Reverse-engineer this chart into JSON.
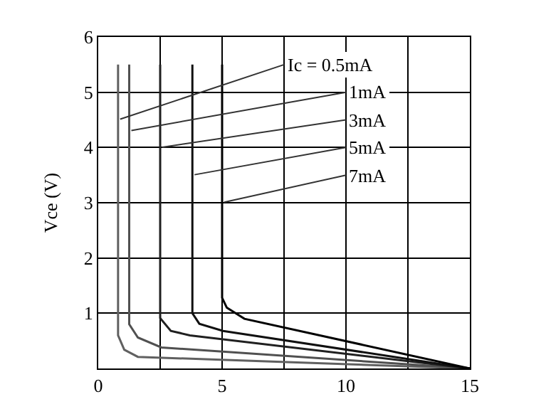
{
  "chart_data": {
    "type": "line",
    "ylabel": "Vce (V)",
    "xlim": [
      0,
      15
    ],
    "xticks": [
      0,
      {
        "value": 2.5,
        "label": null
      },
      5,
      {
        "value": 7.5,
        "label": null
      },
      10,
      {
        "value": 12.5,
        "label": null
      },
      15
    ],
    "ylim": [
      0,
      6
    ],
    "yticks": [
      1,
      2,
      3,
      4,
      5,
      6
    ],
    "grid": true,
    "marker": "none",
    "line_style": "solid",
    "series": [
      {
        "color": "#606060",
        "x": [
          0.8,
          0.8,
          0.8,
          1.05,
          1.6,
          15
        ],
        "values": [
          5.5,
          4.5,
          0.6,
          0.34,
          0.21,
          0
        ]
      },
      {
        "color": "#505050",
        "x": [
          1.25,
          1.25,
          1.25,
          1.6,
          2.55,
          15
        ],
        "values": [
          5.5,
          4.3,
          0.8,
          0.56,
          0.38,
          0
        ]
      },
      {
        "color": "#202020",
        "x": [
          2.5,
          2.5,
          2.5,
          2.93,
          3.7,
          15
        ],
        "values": [
          5.5,
          4.0,
          0.91,
          0.68,
          0.6,
          0
        ]
      },
      {
        "color": "#101010",
        "x": [
          3.8,
          3.8,
          3.8,
          4.08,
          5.04,
          15
        ],
        "values": [
          5.5,
          3.5,
          1.0,
          0.81,
          0.68,
          0
        ]
      },
      {
        "color": "#000000",
        "x": [
          5.0,
          5.0,
          5.0,
          5.19,
          5.9,
          15
        ],
        "values": [
          5.5,
          3.0,
          1.28,
          1.1,
          0.9,
          0
        ]
      }
    ],
    "annotations": [
      {
        "text": "Ic = 0.5mA",
        "x": 0.8,
        "y": 4.5
      },
      {
        "text": "1mA",
        "x": 1.25,
        "y": 4.3
      },
      {
        "text": "3mA",
        "x": 2.5,
        "y": 4.0
      },
      {
        "text": "5mA",
        "x": 3.8,
        "y": 3.5
      },
      {
        "text": "7mA",
        "x": 5.0,
        "y": 3.0
      }
    ]
  }
}
